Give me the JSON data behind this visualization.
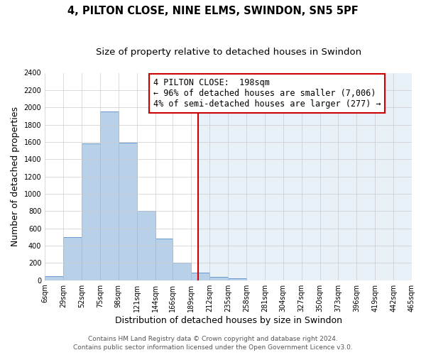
{
  "title": "4, PILTON CLOSE, NINE ELMS, SWINDON, SN5 5PF",
  "subtitle": "Size of property relative to detached houses in Swindon",
  "xlabel": "Distribution of detached houses by size in Swindon",
  "ylabel": "Number of detached properties",
  "bar_labels": [
    "6sqm",
    "29sqm",
    "52sqm",
    "75sqm",
    "98sqm",
    "121sqm",
    "144sqm",
    "166sqm",
    "189sqm",
    "212sqm",
    "235sqm",
    "258sqm",
    "281sqm",
    "304sqm",
    "327sqm",
    "350sqm",
    "373sqm",
    "396sqm",
    "419sqm",
    "442sqm",
    "465sqm"
  ],
  "bar_values": [
    50,
    500,
    1580,
    1950,
    1590,
    800,
    480,
    200,
    90,
    35,
    20,
    0,
    0,
    0,
    0,
    0,
    0,
    0,
    0,
    0
  ],
  "bin_edges": [
    6,
    29,
    52,
    75,
    98,
    121,
    144,
    166,
    189,
    212,
    235,
    258,
    281,
    304,
    327,
    350,
    373,
    396,
    419,
    442,
    465
  ],
  "bar_color": "#b8d0e8",
  "bar_edge_color": "#6699cc",
  "vline_x": 198,
  "vline_color": "#cc0000",
  "annotation_title": "4 PILTON CLOSE:  198sqm",
  "annotation_line1": "← 96% of detached houses are smaller (7,006)",
  "annotation_line2": "4% of semi-detached houses are larger (277) →",
  "annotation_box_color": "white",
  "annotation_box_edge_color": "#cc0000",
  "right_bg_color": "#e8f0f8",
  "ylim": [
    0,
    2400
  ],
  "yticks": [
    0,
    200,
    400,
    600,
    800,
    1000,
    1200,
    1400,
    1600,
    1800,
    2000,
    2200,
    2400
  ],
  "footer1": "Contains HM Land Registry data © Crown copyright and database right 2024.",
  "footer2": "Contains public sector information licensed under the Open Government Licence v3.0.",
  "bg_color": "#ffffff",
  "grid_color": "#cccccc",
  "title_fontsize": 10.5,
  "subtitle_fontsize": 9.5,
  "axis_label_fontsize": 9,
  "tick_fontsize": 7,
  "annotation_fontsize": 8.5,
  "footer_fontsize": 6.5
}
